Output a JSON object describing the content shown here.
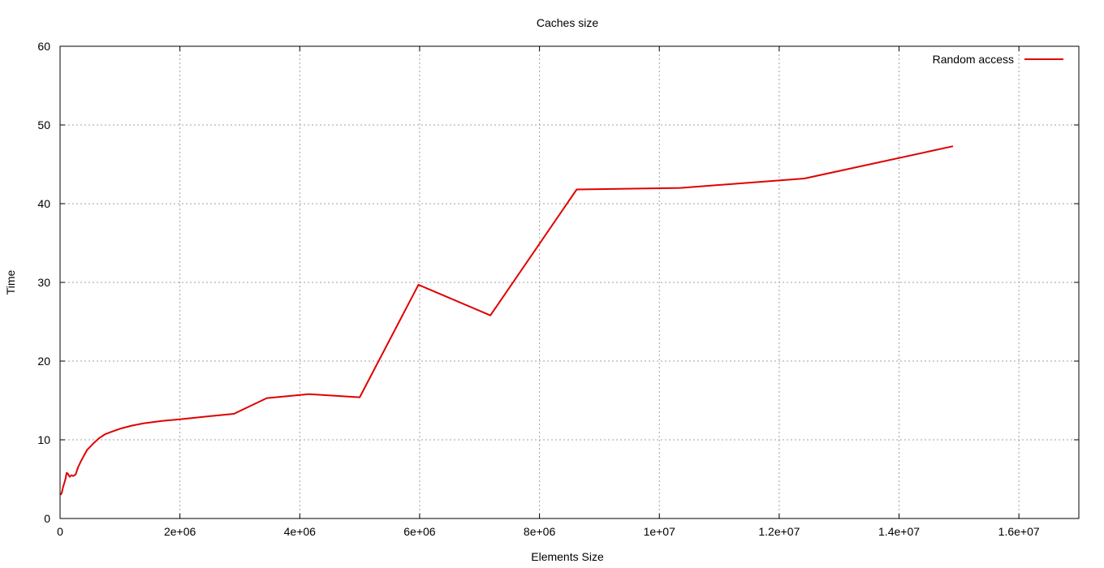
{
  "chart_data": {
    "type": "line",
    "title": "Caches size",
    "xlabel": "Elements Size",
    "ylabel": "Time",
    "xlim": [
      0,
      17000000
    ],
    "ylim": [
      0,
      60
    ],
    "xticks": [
      0,
      2000000,
      4000000,
      6000000,
      8000000,
      10000000,
      12000000,
      14000000,
      16000000
    ],
    "xtick_labels": [
      "0",
      "2e+06",
      "4e+06",
      "6e+06",
      "8e+06",
      "1e+07",
      "1.2e+07",
      "1.4e+07",
      "1.6e+07"
    ],
    "yticks": [
      0,
      10,
      20,
      30,
      40,
      50,
      60
    ],
    "ytick_labels": [
      "0",
      "10",
      "20",
      "30",
      "40",
      "50",
      "60"
    ],
    "grid": true,
    "legend_position": "top-right",
    "series": [
      {
        "name": "Random access",
        "color": "#e00000",
        "x": [
          10000,
          30000,
          50000,
          70000,
          90000,
          110000,
          130000,
          160000,
          190000,
          220000,
          260000,
          300000,
          350000,
          400000,
          450000,
          550000,
          650000,
          750000,
          850000,
          1000000,
          1200000,
          1400000,
          1700000,
          2000000,
          2500000,
          2900000,
          3450000,
          4150000,
          5000000,
          5980000,
          7180000,
          8620000,
          10350000,
          12420000,
          14900000
        ],
        "y": [
          3.0,
          3.3,
          4.0,
          4.5,
          5.0,
          5.8,
          5.7,
          5.3,
          5.5,
          5.4,
          5.6,
          6.5,
          7.3,
          8.0,
          8.7,
          9.5,
          10.2,
          10.7,
          11.0,
          11.4,
          11.8,
          12.1,
          12.4,
          12.6,
          13.0,
          13.3,
          15.3,
          15.8,
          15.4,
          29.7,
          25.8,
          41.8,
          42.0,
          43.2,
          47.3
        ]
      }
    ]
  }
}
